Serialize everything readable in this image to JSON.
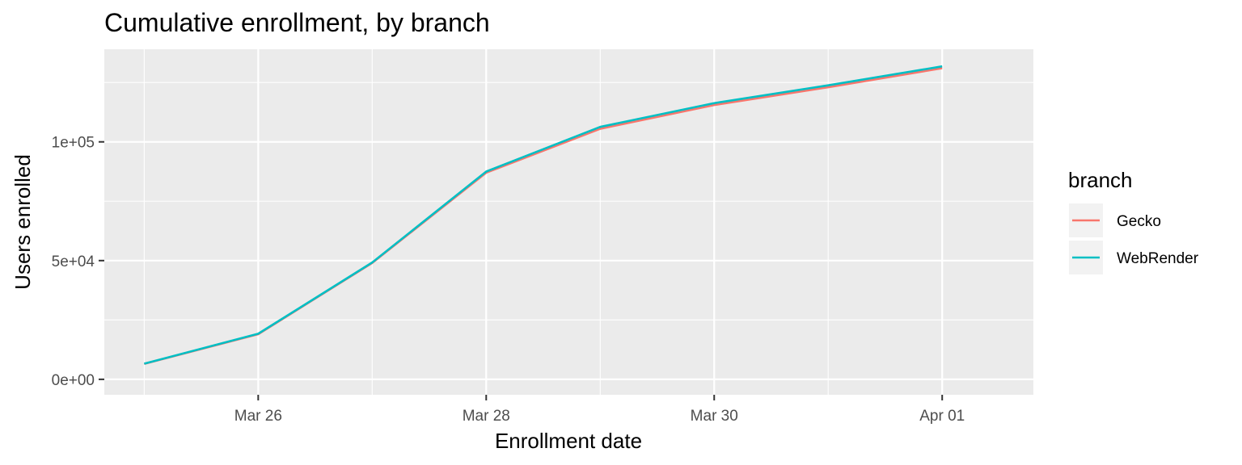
{
  "chart_data": {
    "type": "line",
    "title": "Cumulative enrollment, by branch",
    "xlabel": "Enrollment date",
    "ylabel": "Users enrolled",
    "x": [
      "2020-03-25",
      "2020-03-26",
      "2020-03-27",
      "2020-03-28",
      "2020-03-29",
      "2020-03-30",
      "2020-03-31",
      "2020-04-01"
    ],
    "x_ticks": [
      {
        "date": "2020-03-26",
        "label": "Mar 26"
      },
      {
        "date": "2020-03-28",
        "label": "Mar 28"
      },
      {
        "date": "2020-03-30",
        "label": "Mar 30"
      },
      {
        "date": "2020-04-01",
        "label": "Apr 01"
      }
    ],
    "y_ticks": [
      {
        "value": 0,
        "label": "0e+00"
      },
      {
        "value": 50000,
        "label": "5e+04"
      },
      {
        "value": 100000,
        "label": "1e+05"
      }
    ],
    "xlim": [
      "2020-03-24.65",
      "2020-04-01.8"
    ],
    "ylim": [
      -6500,
      139000
    ],
    "grid": true,
    "legend_title": "branch",
    "legend_position": "right",
    "series": [
      {
        "name": "Gecko",
        "color": "#F8766D",
        "values": [
          6500,
          19000,
          49000,
          87000,
          105500,
          115500,
          123000,
          131000
        ]
      },
      {
        "name": "WebRender",
        "color": "#00BFC4",
        "values": [
          6600,
          19200,
          49200,
          87500,
          106300,
          116300,
          123800,
          131800
        ]
      }
    ]
  }
}
